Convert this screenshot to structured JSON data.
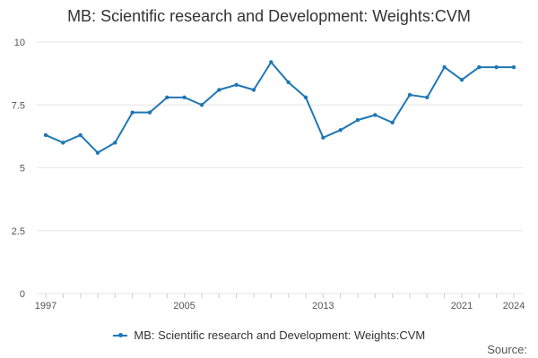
{
  "chart_data": {
    "type": "line",
    "title": "MB: Scientific research and Development: Weights:CVM",
    "xlabel": "",
    "ylabel": "",
    "x": [
      1997,
      1998,
      1999,
      2000,
      2001,
      2002,
      2003,
      2004,
      2005,
      2006,
      2007,
      2008,
      2009,
      2010,
      2011,
      2012,
      2013,
      2014,
      2015,
      2016,
      2017,
      2018,
      2019,
      2020,
      2021,
      2022,
      2023,
      2024
    ],
    "series": [
      {
        "name": "MB: Scientific research and Development: Weights:CVM",
        "color": "#1f77b4",
        "values": [
          6.3,
          6.0,
          6.3,
          5.6,
          6.0,
          7.2,
          7.2,
          7.8,
          7.8,
          7.5,
          8.1,
          8.3,
          8.1,
          9.2,
          8.4,
          7.8,
          6.2,
          6.5,
          6.9,
          7.1,
          6.8,
          7.9,
          7.8,
          9.0,
          8.5,
          9.0,
          9.0,
          9.0
        ]
      }
    ],
    "xticks": [
      "1997",
      "2005",
      "2013",
      "2021",
      "2024"
    ],
    "yticks": [
      "0",
      "2.5",
      "5",
      "7.5",
      "10"
    ],
    "ylim": [
      0,
      10
    ],
    "xlim": [
      1997,
      2024
    ],
    "grid": true,
    "legend": "bottom"
  },
  "source_label": "Source:"
}
